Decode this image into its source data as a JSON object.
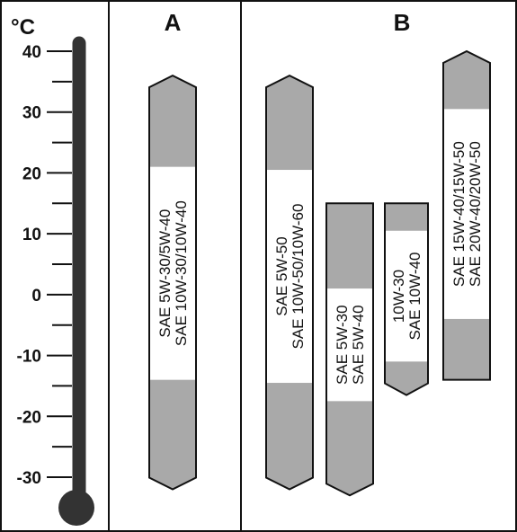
{
  "unit": "°C",
  "scale": {
    "min": -30,
    "max": 40,
    "ticks": [
      40,
      30,
      20,
      10,
      0,
      -10,
      -20,
      -30
    ]
  },
  "colors": {
    "ink": "#111111",
    "bar_gray": "#a9a9a9",
    "bar_white": "#ffffff",
    "thermometer": "#333333"
  },
  "sections": [
    {
      "id": "A",
      "label": "A",
      "bars": [
        {
          "lines": [
            "SAE 5W-30/5W-40",
            "SAE 10W-30/10W-40"
          ],
          "top_c": 36,
          "bottom_c": -32,
          "white_from_c": 21,
          "white_to_c": -14,
          "top_shape": "point",
          "bottom_shape": "point"
        }
      ]
    },
    {
      "id": "B",
      "label": "B",
      "bars": [
        {
          "lines": [
            "SAE 5W-50",
            "SAE 10W-50/10W-60"
          ],
          "top_c": 36,
          "bottom_c": -32,
          "white_from_c": 20.5,
          "white_to_c": -14.5,
          "top_shape": "point",
          "bottom_shape": "point"
        },
        {
          "lines": [
            "SAE 5W-30",
            "SAE 5W-40"
          ],
          "top_c": 15,
          "bottom_c": -33,
          "white_from_c": 1,
          "white_to_c": -17.5,
          "top_shape": "flat",
          "bottom_shape": "point"
        },
        {
          "lines": [
            "10W-30",
            "SAE 10W-40"
          ],
          "top_c": 15,
          "bottom_c": -16.5,
          "white_from_c": 10.5,
          "white_to_c": -11,
          "top_shape": "flat",
          "bottom_shape": "point"
        },
        {
          "lines": [
            "SAE 15W-40/15W-50",
            "SAE 20W-40/20W-50"
          ],
          "top_c": 40,
          "bottom_c": -14,
          "white_from_c": 30.5,
          "white_to_c": -4,
          "top_shape": "point",
          "bottom_shape": "flat"
        }
      ]
    }
  ]
}
